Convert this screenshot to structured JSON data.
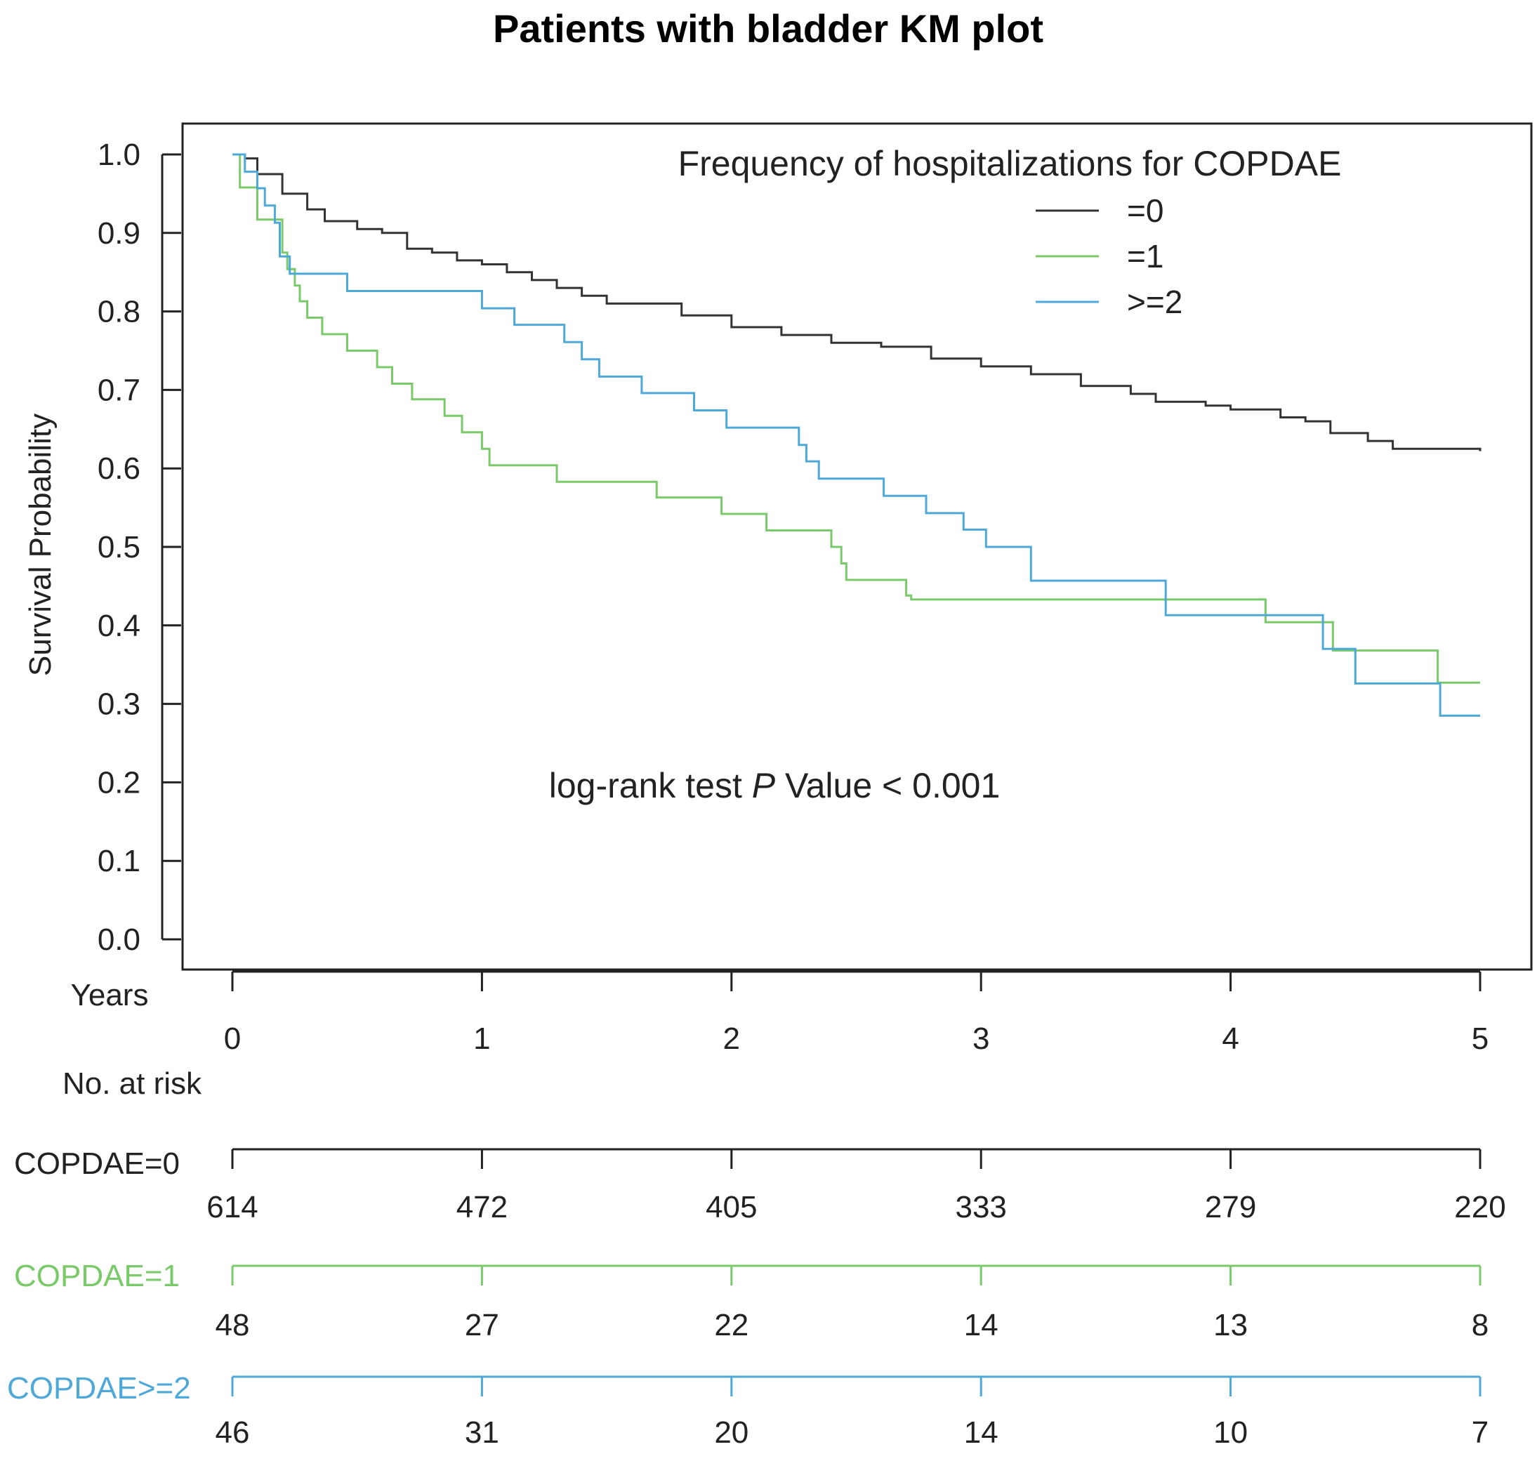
{
  "chart_data": {
    "type": "line",
    "step": true,
    "title": "Patients with bladder KM plot",
    "xlabel": "Years",
    "ylabel": "Survival Probability",
    "xlim": [
      0,
      5
    ],
    "ylim": [
      0,
      1.0
    ],
    "xticks": [
      "0",
      "1",
      "2",
      "3",
      "4",
      "5"
    ],
    "yticks": [
      "0.0",
      "0.1",
      "0.2",
      "0.3",
      "0.4",
      "0.5",
      "0.6",
      "0.7",
      "0.8",
      "0.9",
      "1.0"
    ],
    "legend": {
      "title": "Frequency of hospitalizations for COPDAE",
      "position": "top-right",
      "entries": [
        "=0",
        "=1",
        ">=2"
      ]
    },
    "annotation_prefix": "log-rank test ",
    "annotation_p": "P",
    "annotation_suffix": " Value < 0.001",
    "series": [
      {
        "name": "=0",
        "color": "#333333",
        "points": [
          [
            0,
            1.0
          ],
          [
            0.05,
            0.995
          ],
          [
            0.1,
            0.975
          ],
          [
            0.2,
            0.95
          ],
          [
            0.3,
            0.93
          ],
          [
            0.37,
            0.915
          ],
          [
            0.5,
            0.905
          ],
          [
            0.6,
            0.9
          ],
          [
            0.7,
            0.88
          ],
          [
            0.8,
            0.875
          ],
          [
            0.9,
            0.865
          ],
          [
            1.0,
            0.86
          ],
          [
            1.1,
            0.85
          ],
          [
            1.2,
            0.84
          ],
          [
            1.3,
            0.83
          ],
          [
            1.4,
            0.82
          ],
          [
            1.5,
            0.81
          ],
          [
            1.65,
            0.81
          ],
          [
            1.8,
            0.795
          ],
          [
            2.0,
            0.78
          ],
          [
            2.2,
            0.77
          ],
          [
            2.4,
            0.76
          ],
          [
            2.6,
            0.755
          ],
          [
            2.8,
            0.74
          ],
          [
            3.0,
            0.73
          ],
          [
            3.2,
            0.72
          ],
          [
            3.4,
            0.705
          ],
          [
            3.6,
            0.695
          ],
          [
            3.7,
            0.685
          ],
          [
            3.9,
            0.68
          ],
          [
            4.0,
            0.675
          ],
          [
            4.2,
            0.665
          ],
          [
            4.3,
            0.66
          ],
          [
            4.4,
            0.645
          ],
          [
            4.55,
            0.635
          ],
          [
            4.65,
            0.625
          ],
          [
            5.0,
            0.622
          ]
        ]
      },
      {
        "name": "=1",
        "color": "#7ac96a",
        "points": [
          [
            0,
            1.0
          ],
          [
            0.03,
            0.958
          ],
          [
            0.1,
            0.917
          ],
          [
            0.2,
            0.875
          ],
          [
            0.22,
            0.854
          ],
          [
            0.25,
            0.833
          ],
          [
            0.27,
            0.813
          ],
          [
            0.3,
            0.792
          ],
          [
            0.36,
            0.771
          ],
          [
            0.46,
            0.75
          ],
          [
            0.58,
            0.729
          ],
          [
            0.64,
            0.708
          ],
          [
            0.72,
            0.688
          ],
          [
            0.85,
            0.667
          ],
          [
            0.92,
            0.646
          ],
          [
            1.0,
            0.625
          ],
          [
            1.03,
            0.604
          ],
          [
            1.3,
            0.583
          ],
          [
            1.4,
            0.583
          ],
          [
            1.7,
            0.563
          ],
          [
            1.96,
            0.542
          ],
          [
            2.14,
            0.521
          ],
          [
            2.4,
            0.5
          ],
          [
            2.44,
            0.479
          ],
          [
            2.46,
            0.458
          ],
          [
            2.7,
            0.438
          ],
          [
            2.72,
            0.433
          ],
          [
            4.13,
            0.433
          ],
          [
            4.14,
            0.404
          ],
          [
            4.4,
            0.404
          ],
          [
            4.41,
            0.368
          ],
          [
            4.82,
            0.368
          ],
          [
            4.83,
            0.327
          ],
          [
            5.0,
            0.327
          ]
        ]
      },
      {
        "name": ">=2",
        "color": "#4ea8d8",
        "points": [
          [
            0,
            1.0
          ],
          [
            0.05,
            0.978
          ],
          [
            0.1,
            0.957
          ],
          [
            0.13,
            0.935
          ],
          [
            0.17,
            0.913
          ],
          [
            0.19,
            0.87
          ],
          [
            0.23,
            0.848
          ],
          [
            0.46,
            0.826
          ],
          [
            1.0,
            0.804
          ],
          [
            1.13,
            0.783
          ],
          [
            1.33,
            0.761
          ],
          [
            1.4,
            0.739
          ],
          [
            1.47,
            0.717
          ],
          [
            1.64,
            0.696
          ],
          [
            1.85,
            0.674
          ],
          [
            1.98,
            0.652
          ],
          [
            2.27,
            0.63
          ],
          [
            2.3,
            0.609
          ],
          [
            2.35,
            0.587
          ],
          [
            2.61,
            0.565
          ],
          [
            2.78,
            0.543
          ],
          [
            2.93,
            0.522
          ],
          [
            3.02,
            0.5
          ],
          [
            3.2,
            0.457
          ],
          [
            3.74,
            0.413
          ],
          [
            4.2,
            0.413
          ],
          [
            4.37,
            0.37
          ],
          [
            4.5,
            0.326
          ],
          [
            4.84,
            0.285
          ],
          [
            5.0,
            0.285
          ]
        ]
      }
    ],
    "risk_table": {
      "title": "No. at risk",
      "rows": [
        {
          "label": "COPDAE=0",
          "color": "#222222",
          "values": [
            "614",
            "472",
            "405",
            "333",
            "279",
            "220"
          ]
        },
        {
          "label": "COPDAE=1",
          "color": "#7ac96a",
          "values": [
            "48",
            "27",
            "22",
            "14",
            "13",
            "8"
          ]
        },
        {
          "label": "COPDAE>=2",
          "color": "#4ea8d8",
          "values": [
            "46",
            "31",
            "20",
            "14",
            "10",
            "7"
          ]
        }
      ]
    }
  }
}
